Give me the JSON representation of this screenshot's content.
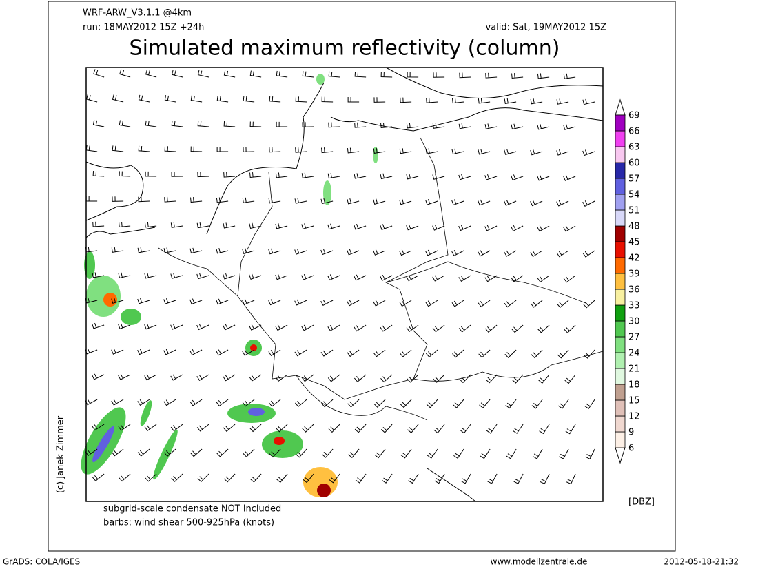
{
  "header": {
    "model": "WRF-ARW_V3.1.1 @4km",
    "run": "run: 18MAY2012 15Z +24h",
    "valid": "valid: Sat, 19MAY2012 15Z",
    "title": "Simulated maximum reflectivity (column)"
  },
  "colorbar": {
    "levels": [
      6,
      9,
      12,
      15,
      18,
      21,
      24,
      27,
      30,
      33,
      36,
      39,
      42,
      45,
      48,
      51,
      54,
      57,
      60,
      63,
      66,
      69
    ],
    "colors": [
      "#fdf0e6",
      "#f0d8d0",
      "#e0c0b8",
      "#c0a090",
      "#e0f8e0",
      "#b0f0b0",
      "#80e080",
      "#50c850",
      "#10a010",
      "#f8f0a0",
      "#ffc040",
      "#ff6a00",
      "#e81000",
      "#a00000",
      "#d8d8f8",
      "#a0a0f0",
      "#6060e0",
      "#2828a8",
      "#f8c8f0",
      "#f040f0",
      "#a000c0"
    ],
    "unit": "[DBZ]"
  },
  "notes": [
    "subgrid-scale condensate NOT included",
    "barbs: wind shear 500-925hPa (knots)"
  ],
  "credit": "(c) Janek Zimmer",
  "footer": {
    "left": "GrADS: COLA/IGES",
    "center": "www.modellzentrale.de",
    "right": "2012-05-18-21:32"
  }
}
